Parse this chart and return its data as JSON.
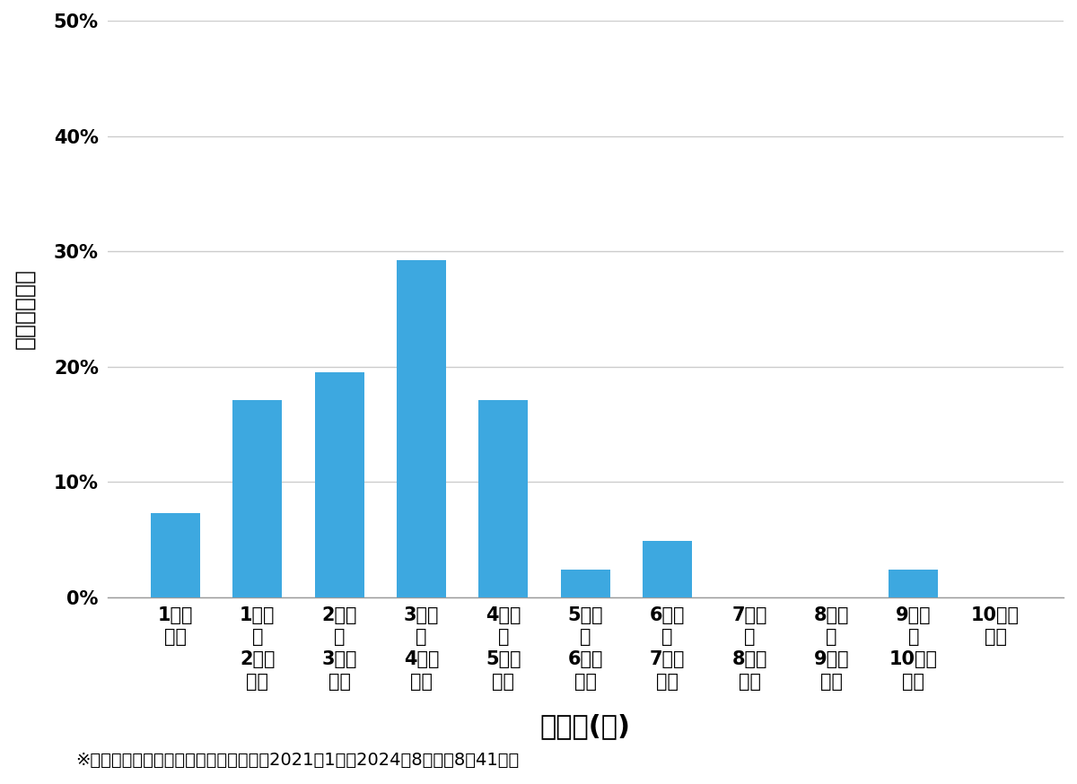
{
  "categories": [
    "1万円\n未満",
    "1万円\n～\n2万円\n未満",
    "2万円\n～\n3万円\n未満",
    "3万円\n～\n4万円\n未満",
    "4万円\n～\n5万円\n未満",
    "5万円\n～\n6万円\n未満",
    "6万円\n～\n7万円\n未満",
    "7万円\n～\n8万円\n未満",
    "8万円\n～\n9万円\n未満",
    "9万円\n～\n10万円\n未満",
    "10万円\n以上"
  ],
  "values": [
    7.317,
    17.073,
    19.512,
    29.268,
    17.073,
    2.439,
    4.878,
    0.0,
    0.0,
    2.439,
    0.0
  ],
  "bar_color": "#3da8e0",
  "ylabel": "価格帯の割合",
  "xlabel": "価格帯(円)",
  "footnote": "※弊社受付の案件を対象に集計（期間：2021年1月～2024年8月、允8件41件）",
  "ylim": [
    0,
    50
  ],
  "yticks": [
    0,
    10,
    20,
    30,
    40,
    50
  ],
  "ytick_labels": [
    "0%",
    "10%",
    "20%",
    "30%",
    "40%",
    "50%"
  ],
  "background_color": "#ffffff",
  "bar_edge_color": "none",
  "grid_color": "#cccccc",
  "xlabel_fontsize": 22,
  "ylabel_fontsize": 18,
  "tick_fontsize": 15,
  "footnote_fontsize": 14
}
